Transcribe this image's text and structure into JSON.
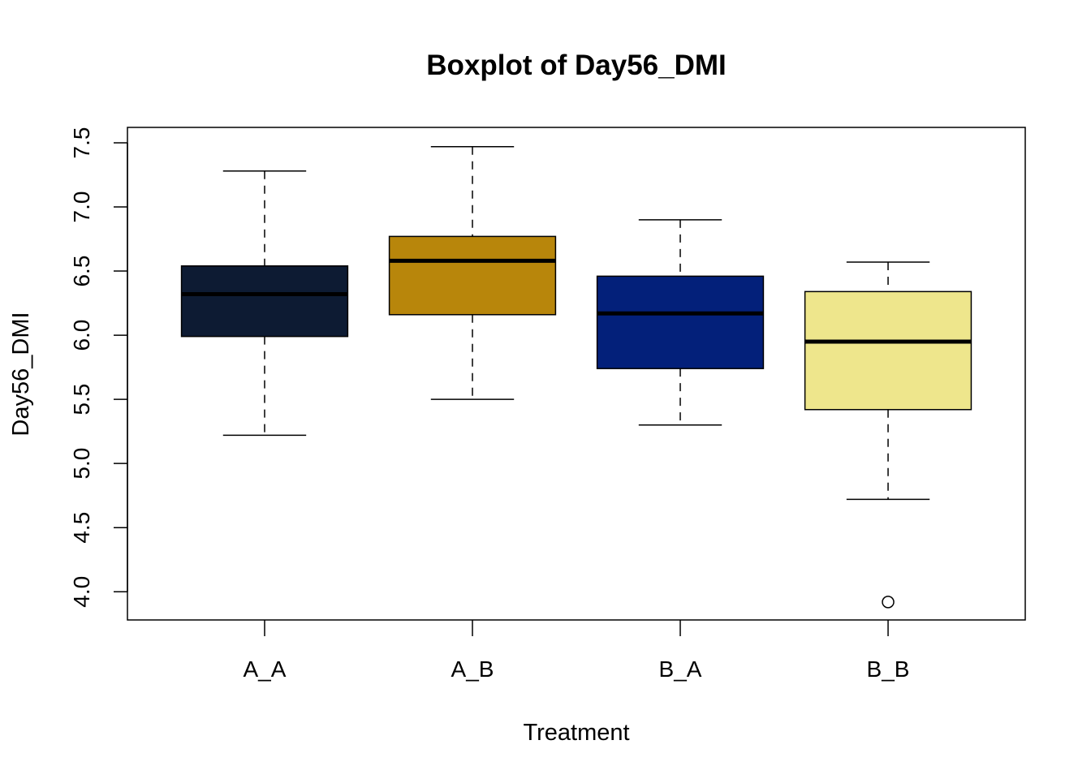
{
  "chart_data": {
    "type": "boxplot",
    "title": "Boxplot of Day56_DMI",
    "xlabel": "Treatment",
    "ylabel": "Day56_DMI",
    "categories": [
      "A_A",
      "A_B",
      "B_A",
      "B_B"
    ],
    "ylim": [
      3.78,
      7.62
    ],
    "yticks": [
      "4.0",
      "4.5",
      "5.0",
      "5.5",
      "6.0",
      "6.5",
      "7.0",
      "7.5"
    ],
    "grid": false,
    "legend": "none",
    "boxes": [
      {
        "category": "A_A",
        "whisker_low": 5.22,
        "q1": 5.99,
        "median": 6.32,
        "q3": 6.54,
        "whisker_high": 7.28,
        "outliers": [],
        "color": "#0D1B33"
      },
      {
        "category": "A_B",
        "whisker_low": 5.5,
        "q1": 6.16,
        "median": 6.58,
        "q3": 6.77,
        "whisker_high": 7.47,
        "outliers": [],
        "color": "#B8860B"
      },
      {
        "category": "B_A",
        "whisker_low": 5.3,
        "q1": 5.74,
        "median": 6.17,
        "q3": 6.46,
        "whisker_high": 6.9,
        "outliers": [],
        "color": "#03207A"
      },
      {
        "category": "B_B",
        "whisker_low": 4.72,
        "q1": 5.42,
        "median": 5.95,
        "q3": 6.34,
        "whisker_high": 6.57,
        "outliers": [
          3.92
        ],
        "color": "#EEE68C"
      }
    ]
  }
}
